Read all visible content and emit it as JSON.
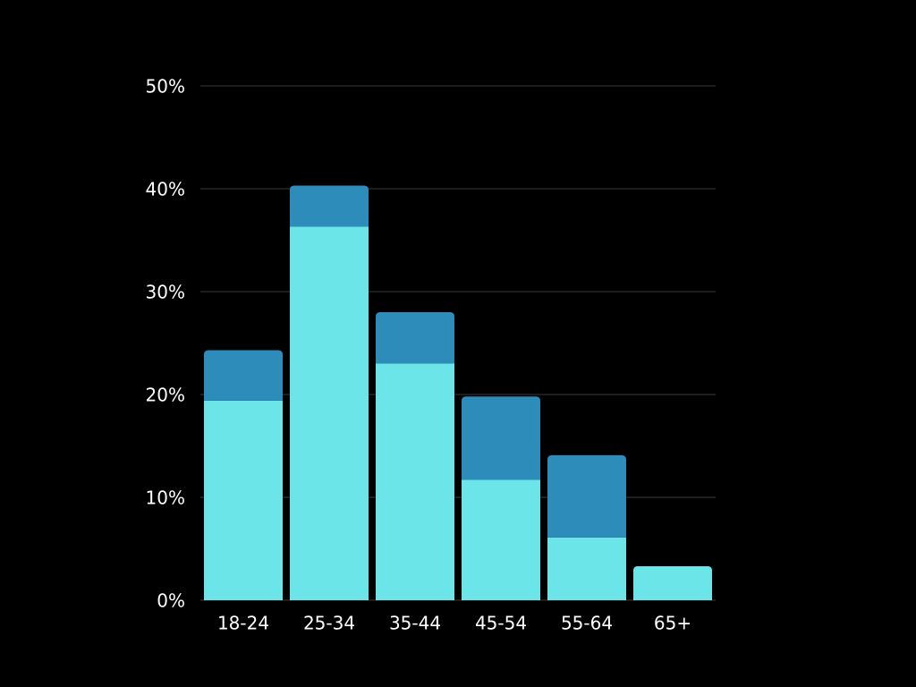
{
  "chart_data": {
    "type": "stacked-bar",
    "categories": [
      "18-24",
      "25-34",
      "35-44",
      "45-54",
      "55-64",
      "65+"
    ],
    "series": [
      {
        "color": "#6ce5e8",
        "values": [
          19.4,
          36.3,
          23.0,
          11.7,
          6.1,
          3.3
        ]
      },
      {
        "color": "#2e8cbb",
        "values": [
          4.9,
          4.0,
          5.0,
          8.1,
          8.0,
          0
        ]
      }
    ],
    "ylim": [
      0,
      50
    ],
    "yticks": [
      {
        "value": 0,
        "label": "0%"
      },
      {
        "value": 10,
        "label": "10%"
      },
      {
        "value": 20,
        "label": "20%"
      },
      {
        "value": 30,
        "label": "30%"
      },
      {
        "value": 40,
        "label": "40%"
      },
      {
        "value": 50,
        "label": "50%"
      }
    ],
    "grid": true
  }
}
